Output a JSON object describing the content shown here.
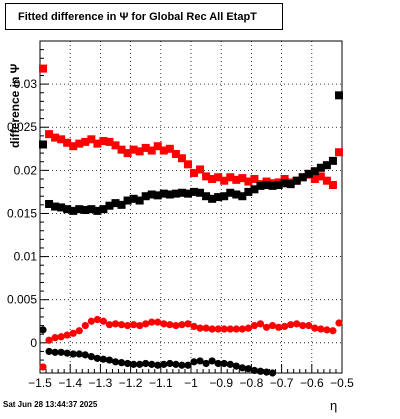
{
  "title": "Fitted difference in  Ψ  for Global Rec All EtapT",
  "timestamp": "Sat Jun 28 13:44:37 2025",
  "chart_data": {
    "type": "scatter",
    "xlabel": "η",
    "ylabel": "difference in  Ψ",
    "xlim": [
      -1.5,
      -0.5
    ],
    "ylim": [
      -0.0035,
      0.035
    ],
    "x_ticks": [
      "−1.5",
      "−1.4",
      "−1.3",
      "−1.2",
      "−1.1",
      "−1",
      "−0.9",
      "−0.8",
      "−0.7",
      "−0.6",
      "−0.5"
    ],
    "y_ticks": [
      "0",
      "0.005",
      "0.01",
      "0.015",
      "0.02",
      "0.025",
      "0.03"
    ],
    "grid": true,
    "colors": {
      "red": "#ff0000",
      "black": "#000000"
    },
    "series": [
      {
        "color": "red",
        "marker": "square",
        "x": [
          -1.49,
          -1.47,
          -1.45,
          -1.43,
          -1.41,
          -1.39,
          -1.37,
          -1.35,
          -1.33,
          -1.31,
          -1.29,
          -1.27,
          -1.25,
          -1.23,
          -1.21,
          -1.19,
          -1.17,
          -1.15,
          -1.13,
          -1.11,
          -1.09,
          -1.07,
          -1.05,
          -1.03,
          -1.01,
          -0.99,
          -0.97,
          -0.95,
          -0.93,
          -0.91,
          -0.89,
          -0.87,
          -0.85,
          -0.83,
          -0.81,
          -0.79,
          -0.77,
          -0.75,
          -0.73,
          -0.71,
          -0.69,
          -0.67,
          -0.65,
          -0.63,
          -0.61,
          -0.59,
          -0.57,
          -0.55,
          -0.53,
          -0.51
        ],
        "values": [
          0.0318,
          0.0242,
          0.0238,
          0.0236,
          0.0232,
          0.0228,
          0.0231,
          0.0233,
          0.0236,
          0.0231,
          0.0234,
          0.0233,
          0.0229,
          0.0224,
          0.022,
          0.0224,
          0.0222,
          0.0226,
          0.0223,
          0.0228,
          0.0223,
          0.0225,
          0.0219,
          0.0214,
          0.0207,
          0.0197,
          0.0201,
          0.0193,
          0.019,
          0.0192,
          0.0188,
          0.0192,
          0.0189,
          0.0191,
          0.0187,
          0.019,
          0.0184,
          0.0187,
          0.0185,
          0.0186,
          0.019,
          0.0186,
          0.0188,
          0.0192,
          0.0195,
          0.019,
          0.0193,
          0.0188,
          0.0183,
          0.0221
        ]
      },
      {
        "color": "black",
        "marker": "square",
        "x": [
          -1.49,
          -1.47,
          -1.45,
          -1.43,
          -1.41,
          -1.39,
          -1.37,
          -1.35,
          -1.33,
          -1.31,
          -1.29,
          -1.27,
          -1.25,
          -1.23,
          -1.21,
          -1.19,
          -1.17,
          -1.15,
          -1.13,
          -1.11,
          -1.09,
          -1.07,
          -1.05,
          -1.03,
          -1.01,
          -0.99,
          -0.97,
          -0.95,
          -0.93,
          -0.91,
          -0.89,
          -0.87,
          -0.85,
          -0.83,
          -0.81,
          -0.79,
          -0.77,
          -0.75,
          -0.73,
          -0.71,
          -0.69,
          -0.67,
          -0.65,
          -0.63,
          -0.61,
          -0.59,
          -0.57,
          -0.55,
          -0.53,
          -0.51
        ],
        "values": [
          0.023,
          0.0161,
          0.0158,
          0.0157,
          0.0155,
          0.0153,
          0.0155,
          0.0154,
          0.0155,
          0.0153,
          0.0155,
          0.0159,
          0.0162,
          0.016,
          0.0165,
          0.0167,
          0.0165,
          0.017,
          0.0172,
          0.0171,
          0.0173,
          0.0172,
          0.0173,
          0.0174,
          0.0173,
          0.0175,
          0.0174,
          0.017,
          0.0167,
          0.0169,
          0.017,
          0.0174,
          0.0172,
          0.017,
          0.0175,
          0.0178,
          0.0182,
          0.0183,
          0.0182,
          0.0183,
          0.0185,
          0.0184,
          0.0188,
          0.0192,
          0.0196,
          0.0199,
          0.0203,
          0.0206,
          0.0211,
          0.0287
        ]
      },
      {
        "color": "red",
        "marker": "circle",
        "x": [
          -1.49,
          -1.47,
          -1.45,
          -1.43,
          -1.41,
          -1.39,
          -1.37,
          -1.35,
          -1.33,
          -1.31,
          -1.29,
          -1.27,
          -1.25,
          -1.23,
          -1.21,
          -1.19,
          -1.17,
          -1.15,
          -1.13,
          -1.11,
          -1.09,
          -1.07,
          -1.05,
          -1.03,
          -1.01,
          -0.99,
          -0.97,
          -0.95,
          -0.93,
          -0.91,
          -0.89,
          -0.87,
          -0.85,
          -0.83,
          -0.81,
          -0.79,
          -0.77,
          -0.75,
          -0.73,
          -0.71,
          -0.69,
          -0.67,
          -0.65,
          -0.63,
          -0.61,
          -0.59,
          -0.57,
          -0.55,
          -0.53,
          -0.51
        ],
        "values": [
          -0.0028,
          0.0003,
          0.0006,
          0.0007,
          0.0009,
          0.0011,
          0.0014,
          0.002,
          0.0025,
          0.0027,
          0.0025,
          0.0021,
          0.0022,
          0.0021,
          0.002,
          0.0021,
          0.002,
          0.0022,
          0.0024,
          0.0024,
          0.0022,
          0.0021,
          0.002,
          0.0021,
          0.0022,
          0.0019,
          0.0017,
          0.0017,
          0.0016,
          0.0016,
          0.0016,
          0.0016,
          0.0016,
          0.0016,
          0.0017,
          0.002,
          0.0022,
          0.0018,
          0.002,
          0.0018,
          0.0019,
          0.0021,
          0.0022,
          0.002,
          0.002,
          0.0017,
          0.0016,
          0.0015,
          0.0014,
          0.0023
        ]
      },
      {
        "color": "black",
        "marker": "circle",
        "x": [
          -1.49,
          -1.47,
          -1.45,
          -1.43,
          -1.41,
          -1.39,
          -1.37,
          -1.35,
          -1.33,
          -1.31,
          -1.29,
          -1.27,
          -1.25,
          -1.23,
          -1.21,
          -1.19,
          -1.17,
          -1.15,
          -1.13,
          -1.11,
          -1.09,
          -1.07,
          -1.05,
          -1.03,
          -1.01,
          -0.99,
          -0.97,
          -0.95,
          -0.93,
          -0.91,
          -0.89,
          -0.87,
          -0.85,
          -0.83,
          -0.81,
          -0.79,
          -0.77,
          -0.75,
          -0.73
        ],
        "values": [
          0.0015,
          -0.001,
          -0.0011,
          -0.0011,
          -0.0012,
          -0.0013,
          -0.0013,
          -0.0014,
          -0.0016,
          -0.0018,
          -0.0019,
          -0.002,
          -0.0022,
          -0.0023,
          -0.0024,
          -0.0025,
          -0.0025,
          -0.0024,
          -0.0025,
          -0.0026,
          -0.0025,
          -0.0024,
          -0.0025,
          -0.0026,
          -0.0026,
          -0.0022,
          -0.0021,
          -0.0024,
          -0.0021,
          -0.0024,
          -0.0024,
          -0.0025,
          -0.0027,
          -0.0029,
          -0.003,
          -0.0032,
          -0.0033,
          -0.0034,
          -0.0035
        ]
      }
    ]
  }
}
